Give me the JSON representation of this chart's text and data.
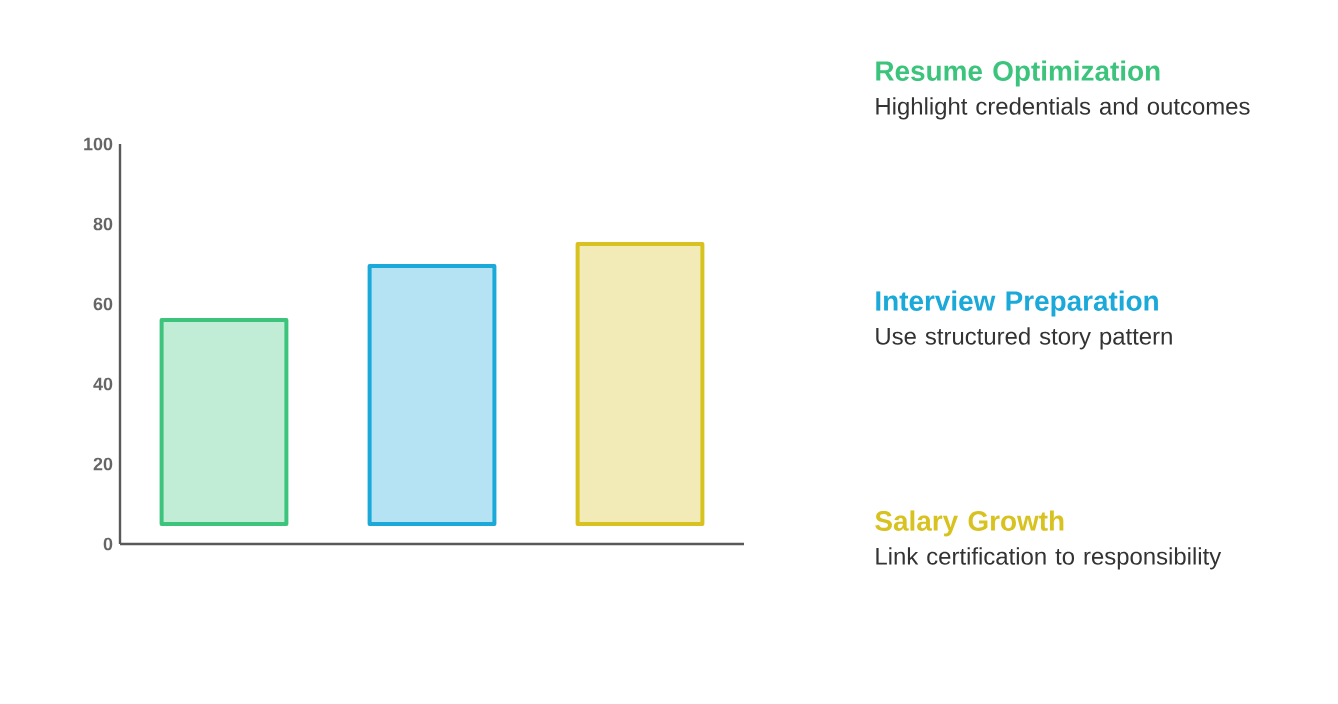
{
  "chart_data": {
    "type": "bar",
    "categories": [
      null,
      null,
      null
    ],
    "base": [
      5,
      5,
      5
    ],
    "values": [
      51,
      64.5,
      70
    ],
    "colors": [
      "#3cc47c",
      "#1aa9d9",
      "#d7c21f"
    ],
    "ylim": [
      0,
      100
    ],
    "yticks": [
      0,
      20,
      40,
      60,
      80,
      100
    ],
    "annotations": [
      "Resume Optimization",
      "Highlight credentials and outcomes",
      "Interview Preparation",
      "Use structured story pattern",
      "Salary Growth",
      "Link certification to responsibility"
    ]
  }
}
